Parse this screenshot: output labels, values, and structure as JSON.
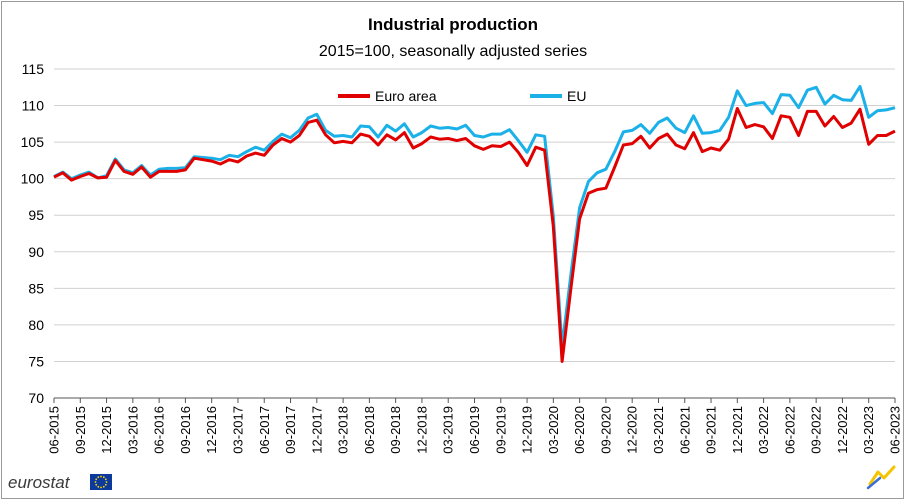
{
  "chart_data": {
    "type": "line",
    "title": "Industrial production",
    "subtitle": "2015=100, seasonally adjusted series",
    "xlabel": "",
    "ylabel": "",
    "ylim": [
      70,
      115
    ],
    "yticks": [
      70,
      75,
      80,
      85,
      90,
      95,
      100,
      105,
      110,
      115
    ],
    "xticks": [
      "06-2015",
      "09-2015",
      "12-2015",
      "03-2016",
      "06-2016",
      "09-2016",
      "12-2016",
      "03-2017",
      "06-2017",
      "09-2017",
      "12-2017",
      "03-2018",
      "06-2018",
      "09-2018",
      "12-2018",
      "03-2019",
      "06-2019",
      "09-2019",
      "12-2019",
      "03-2020",
      "06-2020",
      "09-2020",
      "12-2020",
      "03-2021",
      "06-2021",
      "09-2021",
      "12-2021",
      "03-2022",
      "06-2022",
      "09-2022",
      "12-2022",
      "03-2023",
      "06-2023"
    ],
    "x_start": "06-2015",
    "x_end": "06-2023",
    "grid": true,
    "legend_position": "top",
    "series": [
      {
        "name": "Euro area",
        "color": "#e00000",
        "values": [
          100.2,
          100.8,
          99.8,
          100.3,
          100.7,
          100.1,
          100.2,
          102.5,
          101.0,
          100.6,
          101.6,
          100.2,
          101.0,
          101.0,
          101.0,
          101.2,
          102.8,
          102.6,
          102.4,
          102.0,
          102.6,
          102.3,
          103.1,
          103.5,
          103.2,
          104.6,
          105.5,
          105.0,
          105.9,
          107.7,
          108.0,
          106.0,
          104.9,
          105.1,
          104.9,
          106.1,
          105.8,
          104.6,
          106.0,
          105.3,
          106.3,
          104.2,
          104.8,
          105.7,
          105.4,
          105.5,
          105.2,
          105.5,
          104.5,
          104.0,
          104.5,
          104.4,
          105.0,
          103.6,
          101.8,
          104.3,
          103.9,
          93.5,
          75.0,
          85.0,
          94.5,
          98.0,
          98.5,
          98.7,
          101.6,
          104.6,
          104.8,
          105.8,
          104.2,
          105.5,
          106.1,
          104.6,
          104.1,
          106.3,
          103.7,
          104.2,
          103.9,
          105.4,
          109.6,
          107.0,
          107.4,
          107.1,
          105.5,
          108.6,
          108.4,
          105.9,
          109.2,
          109.2,
          107.2,
          108.5,
          107.0,
          107.6,
          109.5,
          104.7,
          105.9,
          105.9,
          106.5
        ]
      },
      {
        "name": "EU",
        "color": "#1ab0e8",
        "values": [
          100.3,
          100.9,
          100.0,
          100.5,
          100.9,
          100.1,
          100.4,
          102.7,
          101.2,
          100.8,
          101.8,
          100.5,
          101.3,
          101.4,
          101.4,
          101.5,
          103.0,
          102.9,
          102.8,
          102.6,
          103.2,
          103.0,
          103.7,
          104.3,
          103.9,
          105.1,
          106.1,
          105.6,
          106.6,
          108.3,
          108.8,
          106.6,
          105.8,
          105.9,
          105.7,
          107.2,
          107.1,
          105.7,
          107.3,
          106.5,
          107.5,
          105.7,
          106.3,
          107.2,
          106.9,
          107.0,
          106.8,
          107.3,
          105.9,
          105.7,
          106.1,
          106.1,
          106.7,
          105.2,
          103.6,
          106.0,
          105.8,
          94.9,
          77.0,
          86.9,
          96.0,
          99.6,
          100.8,
          101.3,
          103.7,
          106.4,
          106.6,
          107.4,
          106.2,
          107.7,
          108.3,
          106.9,
          106.3,
          108.6,
          106.2,
          106.3,
          106.6,
          108.4,
          112.0,
          110.0,
          110.3,
          110.4,
          108.9,
          111.5,
          111.4,
          109.7,
          112.1,
          112.5,
          110.2,
          111.4,
          110.8,
          110.7,
          112.6,
          108.4,
          109.3,
          109.4,
          109.7
        ]
      }
    ]
  },
  "branding": {
    "logo_text": "eurostat"
  }
}
